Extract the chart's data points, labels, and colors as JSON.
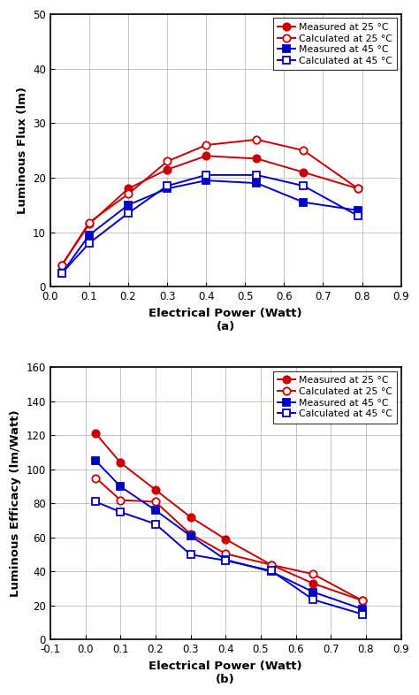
{
  "panel_a": {
    "title": "(a)",
    "xlabel": "Electrical Power (Watt)",
    "ylabel": "Luminous Flux (lm)",
    "xlim": [
      0.0,
      0.9
    ],
    "ylim": [
      0,
      50
    ],
    "xticks": [
      0.0,
      0.1,
      0.2,
      0.3,
      0.4,
      0.5,
      0.6,
      0.7,
      0.8,
      0.9
    ],
    "yticks": [
      0,
      10,
      20,
      30,
      40,
      50
    ],
    "series": [
      {
        "label": "Measured at 25 °C",
        "x": [
          0.03,
          0.1,
          0.2,
          0.3,
          0.4,
          0.53,
          0.65,
          0.79
        ],
        "y": [
          4.0,
          11.5,
          18.0,
          21.5,
          24.0,
          23.5,
          21.0,
          18.0
        ],
        "color": "#cc0000",
        "marker": "o",
        "fillstyle": "full",
        "linestyle": "-"
      },
      {
        "label": "Calculated at 25 °C",
        "x": [
          0.03,
          0.1,
          0.2,
          0.3,
          0.4,
          0.53,
          0.65,
          0.79
        ],
        "y": [
          4.0,
          11.8,
          17.0,
          23.0,
          26.0,
          27.0,
          25.0,
          18.0
        ],
        "color": "#cc0000",
        "marker": "o",
        "fillstyle": "none",
        "linestyle": "-"
      },
      {
        "label": "Measured at 45 °C",
        "x": [
          0.03,
          0.1,
          0.2,
          0.3,
          0.4,
          0.53,
          0.65,
          0.79
        ],
        "y": [
          2.5,
          9.5,
          15.0,
          18.0,
          19.5,
          19.0,
          15.5,
          14.0
        ],
        "color": "#0000cc",
        "marker": "s",
        "fillstyle": "full",
        "linestyle": "-"
      },
      {
        "label": "Calculated at 45 °C",
        "x": [
          0.03,
          0.1,
          0.2,
          0.3,
          0.4,
          0.53,
          0.65,
          0.79
        ],
        "y": [
          2.5,
          8.0,
          13.5,
          18.5,
          20.5,
          20.5,
          18.5,
          13.0
        ],
        "color": "#0000cc",
        "marker": "s",
        "fillstyle": "none",
        "linestyle": "-"
      }
    ]
  },
  "panel_b": {
    "title": "(b)",
    "xlabel": "Electrical Power (Watt)",
    "ylabel": "Luminous Efficacy (lm/Watt)",
    "xlim": [
      -0.1,
      0.9
    ],
    "ylim": [
      0,
      160
    ],
    "xticks": [
      -0.1,
      0.0,
      0.1,
      0.2,
      0.3,
      0.4,
      0.5,
      0.6,
      0.7,
      0.8,
      0.9
    ],
    "yticks": [
      0,
      20,
      40,
      60,
      80,
      100,
      120,
      140,
      160
    ],
    "series": [
      {
        "label": "Measured at 25 °C",
        "x": [
          0.03,
          0.1,
          0.2,
          0.3,
          0.4,
          0.53,
          0.65,
          0.79
        ],
        "y": [
          121.0,
          104.0,
          88.0,
          72.0,
          59.0,
          44.0,
          33.0,
          23.0
        ],
        "color": "#cc0000",
        "marker": "o",
        "fillstyle": "full",
        "linestyle": "-"
      },
      {
        "label": "Calculated at 25 °C",
        "x": [
          0.03,
          0.1,
          0.2,
          0.3,
          0.4,
          0.53,
          0.65,
          0.79
        ],
        "y": [
          95.0,
          82.0,
          81.0,
          62.0,
          50.5,
          44.0,
          38.5,
          23.0
        ],
        "color": "#cc0000",
        "marker": "o",
        "fillstyle": "none",
        "linestyle": "-"
      },
      {
        "label": "Measured at 45 °C",
        "x": [
          0.03,
          0.1,
          0.2,
          0.3,
          0.4,
          0.53,
          0.65,
          0.79
        ],
        "y": [
          105.0,
          90.0,
          76.0,
          61.0,
          47.0,
          40.0,
          28.0,
          18.0
        ],
        "color": "#0000cc",
        "marker": "s",
        "fillstyle": "full",
        "linestyle": "-"
      },
      {
        "label": "Calculated at 45 °C",
        "x": [
          0.03,
          0.1,
          0.2,
          0.3,
          0.4,
          0.53,
          0.65,
          0.79
        ],
        "y": [
          81.0,
          75.0,
          68.0,
          50.0,
          46.5,
          40.5,
          23.5,
          15.0
        ],
        "color": "#0000cc",
        "marker": "s",
        "fillstyle": "none",
        "linestyle": "-"
      }
    ]
  },
  "background_color": "#ffffff",
  "grid_color": "#bbbbbb",
  "marker_size": 6,
  "linewidth": 1.4,
  "font_size_label": 9.5,
  "font_size_tick": 8.5,
  "font_size_legend": 7.8,
  "font_size_title": 10.5
}
